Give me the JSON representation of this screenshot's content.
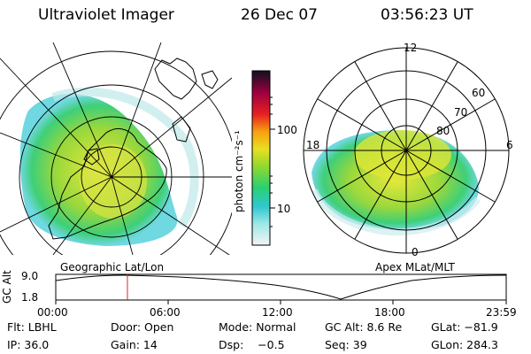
{
  "header": {
    "title": "Ultraviolet Imager",
    "date": "26 Dec 07",
    "time": "03:56:23 UT"
  },
  "colorbar": {
    "unit_label": "photon cm⁻²s⁻¹",
    "ticks": [
      "100",
      "10"
    ],
    "scale": "log",
    "colors": [
      "#f2f2f2",
      "#40d0d8",
      "#28d060",
      "#c8e020",
      "#f0e020",
      "#f8a000",
      "#e02020",
      "#a00040",
      "#101020"
    ]
  },
  "left_map": {
    "label": "Geographic Lat/Lon"
  },
  "right_map": {
    "label": "Apex MLat/MLT",
    "mlt_labels": [
      "12",
      "18",
      "6",
      "0"
    ],
    "lat_labels": [
      "60",
      "70",
      "80"
    ]
  },
  "altitude_plot": {
    "ylabel": "GC Alt",
    "yticks": [
      "9.0",
      "1.8"
    ],
    "xticks": [
      "00:00",
      "06:00",
      "12:00",
      "18:00",
      "23:59"
    ],
    "marker_color": "#e02020"
  },
  "info": {
    "flt": "Flt: LBHL",
    "door": "Door: Open",
    "mode": "Mode: Normal",
    "gc_alt": "GC Alt: 8.6 Re",
    "glat": "GLat: −81.9",
    "ip": "IP: 36.0",
    "gain": "Gain: 14",
    "dsp": "Dsp:    −0.5",
    "seq": "Seq: 39",
    "glon": "GLon: 284.3"
  }
}
